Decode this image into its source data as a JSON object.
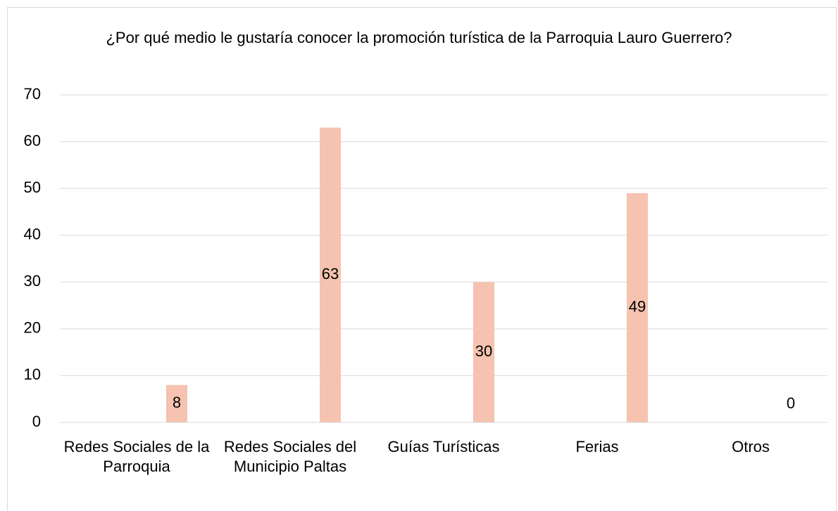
{
  "chart_data": {
    "type": "bar",
    "title": "¿Por qué medio le gustaría conocer la promoción turística de la Parroquia Lauro Guerrero?",
    "categories": [
      "Redes Sociales de la Parroquia",
      "Redes Sociales del Municipio Paltas",
      "Guías Turísticas",
      "Ferias",
      "Otros"
    ],
    "values": [
      8,
      63,
      30,
      49,
      0
    ],
    "color": "#f5c3af",
    "ylim": [
      0,
      70
    ],
    "yticks": [
      0,
      10,
      20,
      30,
      40,
      50,
      60,
      70
    ],
    "grid": true
  }
}
